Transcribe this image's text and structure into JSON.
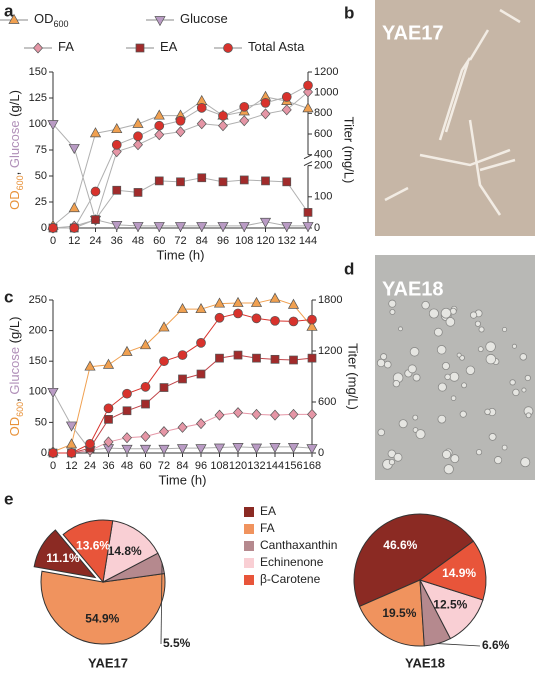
{
  "panels": {
    "letters": [
      "a",
      "b",
      "c",
      "d",
      "e"
    ],
    "images": [
      "YAE17",
      "YAE18"
    ]
  },
  "chart_data": [
    {
      "type": "line",
      "legend": true,
      "xlabel": "Time (h)",
      "ylabel": [
        {
          "text": "OD",
          "color": "#e8923a"
        },
        {
          "text": "600",
          "color": "#e8923a",
          "sub": true
        },
        {
          "text": ", ",
          "color": "#222222"
        },
        {
          "text": "Glucose",
          "color": "#b08fb8"
        },
        {
          "text": " (g/L)",
          "color": "#222222"
        }
      ],
      "y2label": "Titer (mg/L)",
      "x": [
        0,
        12,
        24,
        36,
        48,
        60,
        72,
        84,
        96,
        108,
        120,
        132,
        144
      ],
      "xlim": [
        0,
        144
      ],
      "xticks": [
        0,
        12,
        24,
        36,
        48,
        60,
        72,
        84,
        96,
        108,
        120,
        132,
        144
      ],
      "ylim": [
        0,
        150
      ],
      "yticks": [
        0,
        25,
        50,
        75,
        100,
        125,
        150
      ],
      "y2lim": [
        0,
        1200
      ],
      "y2ticks": [
        0,
        100,
        200,
        400,
        600,
        800,
        1000,
        1200
      ],
      "y2break": [
        200,
        400
      ],
      "series": [
        {
          "name": "OD",
          "name_sub": "600",
          "marker": "triangle-up",
          "color": "#f0a050",
          "line": "#b0b0b0",
          "values": [
            2,
            19,
            91,
            95,
            100,
            108,
            108,
            122,
            108,
            112,
            126,
            122,
            115
          ]
        },
        {
          "name": "Glucose",
          "marker": "triangle-down",
          "color": "#b99bc4",
          "line": "#b0b0b0",
          "values": [
            100,
            77,
            8,
            3,
            2,
            2,
            2,
            2,
            2,
            2,
            6,
            2,
            2
          ]
        },
        {
          "name": "FA",
          "marker": "diamond",
          "color": "#e596a6",
          "line": "#b0b0b0",
          "axis": "y2",
          "values": [
            0,
            6,
            26,
            429,
            496,
            593,
            622,
            699,
            680,
            728,
            795,
            834,
            1007
          ]
        },
        {
          "name": "EA",
          "marker": "square",
          "color": "#a12b2b",
          "line": "#b0b0b0",
          "axis": "y2",
          "values": [
            0,
            0,
            27,
            121,
            114,
            151,
            148,
            161,
            148,
            154,
            151,
            148,
            50
          ]
        },
        {
          "name": "Total Asta",
          "marker": "circle",
          "color": "#d8322c",
          "line": "#b0b0b0",
          "axis": "y2",
          "values": [
            0,
            0,
            117,
            496,
            578,
            680,
            728,
            853,
            776,
            863,
            901,
            959,
            1070
          ]
        }
      ]
    },
    {
      "type": "line",
      "legend": false,
      "xlabel": "Time (h)",
      "ylabel": [
        {
          "text": "OD",
          "color": "#e8923a"
        },
        {
          "text": "600",
          "color": "#e8923a",
          "sub": true
        },
        {
          "text": ", ",
          "color": "#222222"
        },
        {
          "text": "Glucose",
          "color": "#b08fb8"
        },
        {
          "text": " (g/L)",
          "color": "#222222"
        }
      ],
      "y2label": "Titer (mg/L)",
      "x": [
        0,
        12,
        24,
        36,
        48,
        60,
        72,
        84,
        96,
        108,
        120,
        132,
        144,
        156,
        168
      ],
      "xlim": [
        0,
        168
      ],
      "xticks": [
        0,
        12,
        24,
        36,
        48,
        60,
        72,
        84,
        96,
        108,
        120,
        132,
        144,
        156,
        168
      ],
      "ylim": [
        0,
        250
      ],
      "yticks": [
        0,
        50,
        100,
        150,
        200,
        250
      ],
      "y2lim": [
        0,
        1800
      ],
      "y2ticks": [
        0,
        600,
        1200,
        1800
      ],
      "series": [
        {
          "name": "OD",
          "marker": "triangle-up",
          "color": "#f0a050",
          "line": "#f0a050",
          "values": [
            2,
            14,
            141,
            144,
            165,
            176,
            205,
            235,
            235,
            244,
            245,
            245,
            252,
            242,
            206
          ]
        },
        {
          "name": "Glucose",
          "marker": "triangle-down",
          "color": "#b99bc4",
          "line": "#b0b0b0",
          "values": [
            100,
            45,
            5,
            8,
            7,
            7,
            7,
            8,
            8,
            9,
            10,
            9,
            10,
            10,
            8
          ]
        },
        {
          "name": "FA",
          "marker": "diamond",
          "color": "#e596a6",
          "line": "#e596a6",
          "axis": "y2",
          "values": [
            0,
            0,
            29,
            130,
            180,
            194,
            252,
            302,
            346,
            446,
            475,
            454,
            446,
            454,
            454
          ]
        },
        {
          "name": "EA",
          "marker": "square",
          "color": "#a12b2b",
          "line": "#c0454a",
          "axis": "y2",
          "values": [
            0,
            0,
            58,
            396,
            497,
            576,
            770,
            871,
            929,
            1116,
            1152,
            1116,
            1102,
            1094,
            1116
          ]
        },
        {
          "name": "Total Asta",
          "marker": "circle",
          "color": "#d8322c",
          "line": "#d8322c",
          "axis": "y2",
          "values": [
            0,
            0,
            108,
            526,
            698,
            778,
            1080,
            1152,
            1296,
            1591,
            1642,
            1584,
            1555,
            1548,
            1570
          ]
        }
      ]
    },
    {
      "type": "pie",
      "title": "YAE17",
      "legend": true,
      "categories": [
        "EA",
        "FA",
        "Canthaxanthin",
        "Echinenone",
        "β-Carotene"
      ],
      "colors": [
        "#8b2a23",
        "#f0935e",
        "#b5898e",
        "#f9cfd4",
        "#e8553a"
      ],
      "values": [
        11.1,
        54.9,
        5.5,
        14.8,
        13.6
      ],
      "value_labels": [
        "11.1%",
        "54.9%",
        "5.5%",
        "14.8%",
        "13.6%"
      ]
    },
    {
      "type": "pie",
      "title": "YAE18",
      "legend": false,
      "categories": [
        "EA",
        "FA",
        "Canthaxanthin",
        "Echinenone",
        "β-Carotene"
      ],
      "colors": [
        "#8b2a23",
        "#f0935e",
        "#b5898e",
        "#f9cfd4",
        "#e8553a"
      ],
      "values": [
        46.6,
        19.5,
        6.6,
        12.5,
        14.9
      ],
      "value_labels": [
        "46.6%",
        "19.5%",
        "6.6%",
        "12.5%",
        "14.9%"
      ]
    }
  ]
}
